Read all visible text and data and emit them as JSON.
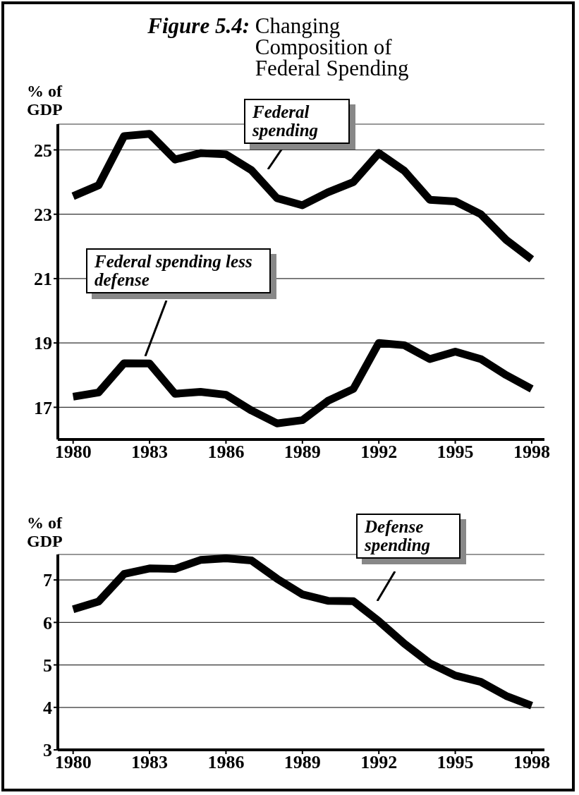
{
  "chart_data": [
    {
      "type": "line",
      "title": "Figure 5.4: Changing Composition of Federal Spending",
      "ylabel": "% of GDP",
      "x": [
        1980,
        1981,
        1982,
        1983,
        1984,
        1985,
        1986,
        1987,
        1988,
        1989,
        1990,
        1991,
        1992,
        1993,
        1994,
        1995,
        1996,
        1997,
        1998
      ],
      "series": [
        {
          "name": "Federal spending",
          "color": "#000000",
          "values": [
            23.56,
            23.9,
            25.43,
            25.5,
            24.7,
            24.9,
            24.86,
            24.37,
            23.5,
            23.28,
            23.68,
            24.0,
            24.9,
            24.35,
            23.45,
            23.4,
            23.0,
            22.2,
            21.6
          ]
        },
        {
          "name": "Federal spending less defense",
          "color": "#000000",
          "values": [
            17.33,
            17.46,
            18.37,
            18.36,
            17.42,
            17.48,
            17.39,
            16.9,
            16.5,
            16.6,
            17.2,
            17.57,
            19.0,
            18.93,
            18.5,
            18.73,
            18.5,
            18.0,
            17.57
          ]
        }
      ],
      "xlim": [
        1979.4,
        1998.5
      ],
      "xticks": [
        1980,
        1983,
        1986,
        1989,
        1992,
        1995,
        1998
      ],
      "ylim": [
        16,
        25.8
      ],
      "yticks": [
        17,
        19,
        21,
        23,
        25
      ],
      "grid": "y",
      "legend": false,
      "marker": "none",
      "line_style": "solid"
    },
    {
      "type": "line",
      "ylabel": "% of GDP",
      "x": [
        1980,
        1981,
        1982,
        1983,
        1984,
        1985,
        1986,
        1987,
        1988,
        1989,
        1990,
        1991,
        1992,
        1993,
        1994,
        1995,
        1996,
        1997,
        1998
      ],
      "series": [
        {
          "name": "Defense spending",
          "color": "#000000",
          "values": [
            6.31,
            6.49,
            7.14,
            7.27,
            7.26,
            7.47,
            7.51,
            7.46,
            7.03,
            6.66,
            6.51,
            6.5,
            6.03,
            5.5,
            5.04,
            4.75,
            4.6,
            4.27,
            4.04
          ]
        }
      ],
      "xlim": [
        1979.4,
        1998.5
      ],
      "xticks": [
        1980,
        1983,
        1986,
        1989,
        1992,
        1995,
        1998
      ],
      "ylim": [
        3,
        7.6
      ],
      "yticks": [
        3,
        4,
        5,
        6,
        7
      ],
      "grid": "y",
      "legend": false,
      "marker": "none",
      "line_style": "solid"
    }
  ]
}
